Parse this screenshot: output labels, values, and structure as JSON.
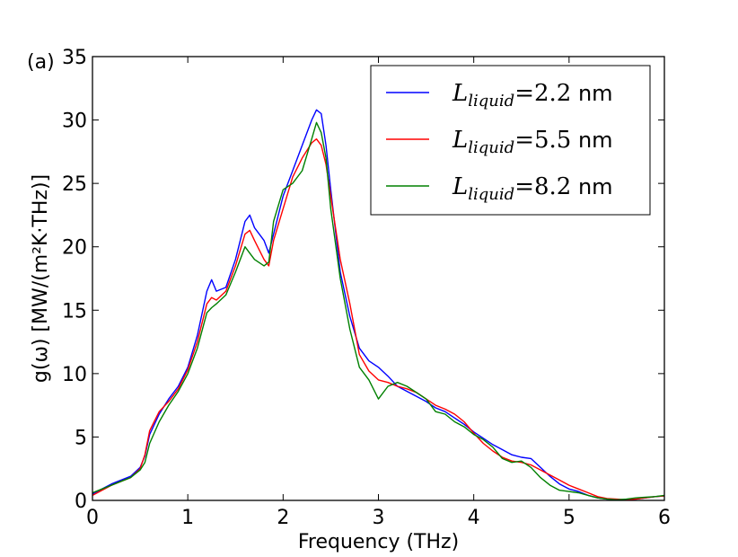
{
  "chart_data": {
    "type": "line",
    "panel_label": "(a)",
    "xlabel": "Frequency (THz)",
    "ylabel": "g(ω) [MW/(m²K·THz)]",
    "xlim": [
      0,
      6
    ],
    "ylim": [
      0,
      35
    ],
    "xticks": [
      0,
      1,
      2,
      3,
      4,
      5,
      6
    ],
    "yticks": [
      0,
      5,
      10,
      15,
      20,
      25,
      30,
      35
    ],
    "legend_position": "top-right",
    "series": [
      {
        "name": "L_liquid = 2.2 nm",
        "legend_var": "L",
        "legend_sub": "liquid",
        "legend_eq": "=",
        "legend_num": "2.2",
        "legend_unit": " nm",
        "color": "#0000ff",
        "x": [
          0,
          0.1,
          0.2,
          0.3,
          0.4,
          0.5,
          0.55,
          0.6,
          0.7,
          0.8,
          0.9,
          1.0,
          1.1,
          1.2,
          1.25,
          1.3,
          1.4,
          1.5,
          1.6,
          1.65,
          1.7,
          1.8,
          1.85,
          1.9,
          2.0,
          2.1,
          2.2,
          2.3,
          2.35,
          2.4,
          2.45,
          2.5,
          2.6,
          2.7,
          2.8,
          2.9,
          3.0,
          3.1,
          3.2,
          3.3,
          3.4,
          3.5,
          3.6,
          3.7,
          3.8,
          3.9,
          4.0,
          4.1,
          4.2,
          4.3,
          4.4,
          4.5,
          4.6,
          4.7,
          4.8,
          4.9,
          5.0,
          5.1,
          5.2,
          5.3,
          5.4,
          5.5,
          5.6,
          5.7,
          5.8,
          5.9,
          6.0
        ],
        "y": [
          0.5,
          0.9,
          1.3,
          1.6,
          1.9,
          2.6,
          3.5,
          5.2,
          6.8,
          8.0,
          9.0,
          10.5,
          13.0,
          16.5,
          17.4,
          16.5,
          16.8,
          19.0,
          22.0,
          22.5,
          21.5,
          20.5,
          19.5,
          21.0,
          24.0,
          26.0,
          28.0,
          30.0,
          30.8,
          30.5,
          28.0,
          24.5,
          18.0,
          14.5,
          12.0,
          11.0,
          10.5,
          9.8,
          9.0,
          8.6,
          8.2,
          7.8,
          7.3,
          7.0,
          6.5,
          6.0,
          5.4,
          4.9,
          4.4,
          4.0,
          3.6,
          3.4,
          3.3,
          2.6,
          1.9,
          1.3,
          0.9,
          0.7,
          0.4,
          0.2,
          0.1,
          0.05,
          0.05,
          0.1,
          0.2,
          0.3,
          0.35
        ]
      },
      {
        "name": "L_liquid = 5.5 nm",
        "legend_var": "L",
        "legend_sub": "liquid",
        "legend_eq": "=",
        "legend_num": "5.5",
        "legend_unit": " nm",
        "color": "#ff0000",
        "x": [
          0,
          0.1,
          0.2,
          0.3,
          0.4,
          0.5,
          0.55,
          0.6,
          0.7,
          0.8,
          0.9,
          1.0,
          1.1,
          1.2,
          1.25,
          1.3,
          1.4,
          1.5,
          1.6,
          1.65,
          1.7,
          1.8,
          1.85,
          1.9,
          2.0,
          2.1,
          2.2,
          2.3,
          2.35,
          2.4,
          2.45,
          2.5,
          2.6,
          2.7,
          2.8,
          2.9,
          3.0,
          3.1,
          3.2,
          3.3,
          3.4,
          3.5,
          3.6,
          3.7,
          3.8,
          3.9,
          4.0,
          4.1,
          4.2,
          4.3,
          4.4,
          4.5,
          4.6,
          4.7,
          4.8,
          4.9,
          5.0,
          5.1,
          5.2,
          5.3,
          5.4,
          5.5,
          5.6,
          5.7,
          5.8,
          5.9,
          6.0
        ],
        "y": [
          0.4,
          0.8,
          1.2,
          1.5,
          1.8,
          2.5,
          3.6,
          5.5,
          7.0,
          7.8,
          8.8,
          10.3,
          12.5,
          15.5,
          16.0,
          15.8,
          16.5,
          18.5,
          21.0,
          21.3,
          20.5,
          19.0,
          18.5,
          20.5,
          23.0,
          25.5,
          27.0,
          28.2,
          28.5,
          28.0,
          26.5,
          24.0,
          19.0,
          15.5,
          11.5,
          10.2,
          9.5,
          9.3,
          9.0,
          8.8,
          8.5,
          8.0,
          7.5,
          7.2,
          6.8,
          6.2,
          5.3,
          4.5,
          3.9,
          3.4,
          3.1,
          3.0,
          2.8,
          2.4,
          2.0,
          1.6,
          1.2,
          0.9,
          0.6,
          0.3,
          0.15,
          0.1,
          0.05,
          0.1,
          0.2,
          0.3,
          0.35
        ]
      },
      {
        "name": "L_liquid = 8.2 nm",
        "legend_var": "L",
        "legend_sub": "liquid",
        "legend_eq": "=",
        "legend_num": "8.2",
        "legend_unit": " nm",
        "color": "#008000",
        "x": [
          0,
          0.1,
          0.2,
          0.3,
          0.4,
          0.5,
          0.55,
          0.6,
          0.7,
          0.8,
          0.9,
          1.0,
          1.1,
          1.2,
          1.25,
          1.3,
          1.4,
          1.5,
          1.6,
          1.65,
          1.7,
          1.8,
          1.85,
          1.9,
          2.0,
          2.1,
          2.2,
          2.3,
          2.35,
          2.4,
          2.45,
          2.5,
          2.6,
          2.7,
          2.8,
          2.9,
          3.0,
          3.1,
          3.2,
          3.3,
          3.4,
          3.5,
          3.6,
          3.7,
          3.8,
          3.9,
          4.0,
          4.1,
          4.2,
          4.3,
          4.4,
          4.5,
          4.6,
          4.7,
          4.8,
          4.9,
          5.0,
          5.1,
          5.2,
          5.3,
          5.4,
          5.5,
          5.6,
          5.7,
          5.8,
          5.9,
          6.0
        ],
        "y": [
          0.6,
          0.9,
          1.2,
          1.5,
          1.8,
          2.4,
          3.0,
          4.5,
          6.2,
          7.5,
          8.6,
          10.0,
          12.0,
          14.8,
          15.2,
          15.5,
          16.2,
          18.0,
          20.0,
          19.5,
          19.0,
          18.5,
          18.8,
          22.0,
          24.5,
          25.0,
          26.0,
          28.5,
          29.8,
          29.0,
          27.0,
          23.0,
          17.5,
          13.5,
          10.5,
          9.5,
          8.0,
          9.0,
          9.3,
          9.0,
          8.5,
          8.0,
          7.0,
          6.8,
          6.2,
          5.8,
          5.2,
          4.8,
          4.2,
          3.3,
          3.0,
          3.1,
          2.6,
          1.8,
          1.2,
          0.8,
          0.7,
          0.6,
          0.4,
          0.2,
          0.1,
          0.05,
          0.1,
          0.2,
          0.25,
          0.3,
          0.4
        ]
      }
    ]
  }
}
